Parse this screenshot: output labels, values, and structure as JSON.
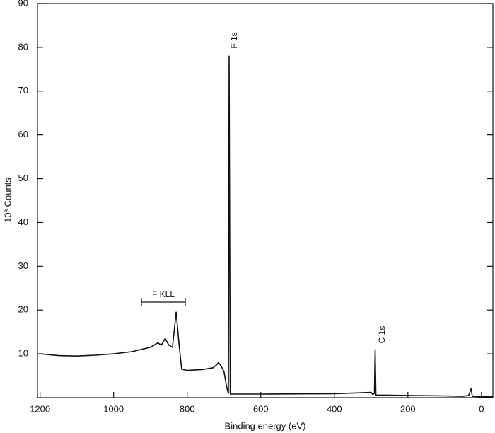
{
  "chart_data": {
    "type": "line",
    "x_label": "Binding energy (eV)",
    "y_label": "10³ Counts",
    "xlim": [
      1207,
      -31
    ],
    "xticks": [
      1200,
      1000,
      800,
      600,
      400,
      200,
      0
    ],
    "ylim": [
      0,
      90
    ],
    "yticks": [
      10,
      20,
      30,
      40,
      50,
      60,
      70,
      80,
      90
    ],
    "color": "#111111",
    "annotations": [
      "F 1s",
      "C 1s",
      "F KLL"
    ],
    "x": [
      1200,
      1150,
      1100,
      1050,
      1000,
      950,
      900,
      880,
      870,
      860,
      850,
      840,
      830,
      822,
      815,
      800,
      760,
      730,
      720,
      715,
      708,
      700,
      694,
      690,
      688,
      686,
      683,
      600,
      500,
      400,
      300,
      295,
      291,
      289,
      287,
      250,
      200,
      100,
      50,
      35,
      28,
      25,
      0,
      -30
    ],
    "values": [
      10,
      9.6,
      9.5,
      9.7,
      10,
      10.5,
      11.5,
      12.5,
      12,
      13.5,
      12,
      11.5,
      19.5,
      12,
      6.5,
      6.2,
      6.4,
      6.8,
      7.5,
      8,
      7.2,
      6,
      3,
      1.5,
      1,
      78,
      0.8,
      0.8,
      0.85,
      0.9,
      1.2,
      0.7,
      1,
      11,
      0.6,
      0.55,
      0.5,
      0.4,
      0.3,
      0.5,
      2,
      0.3,
      0.2,
      0.2
    ]
  }
}
